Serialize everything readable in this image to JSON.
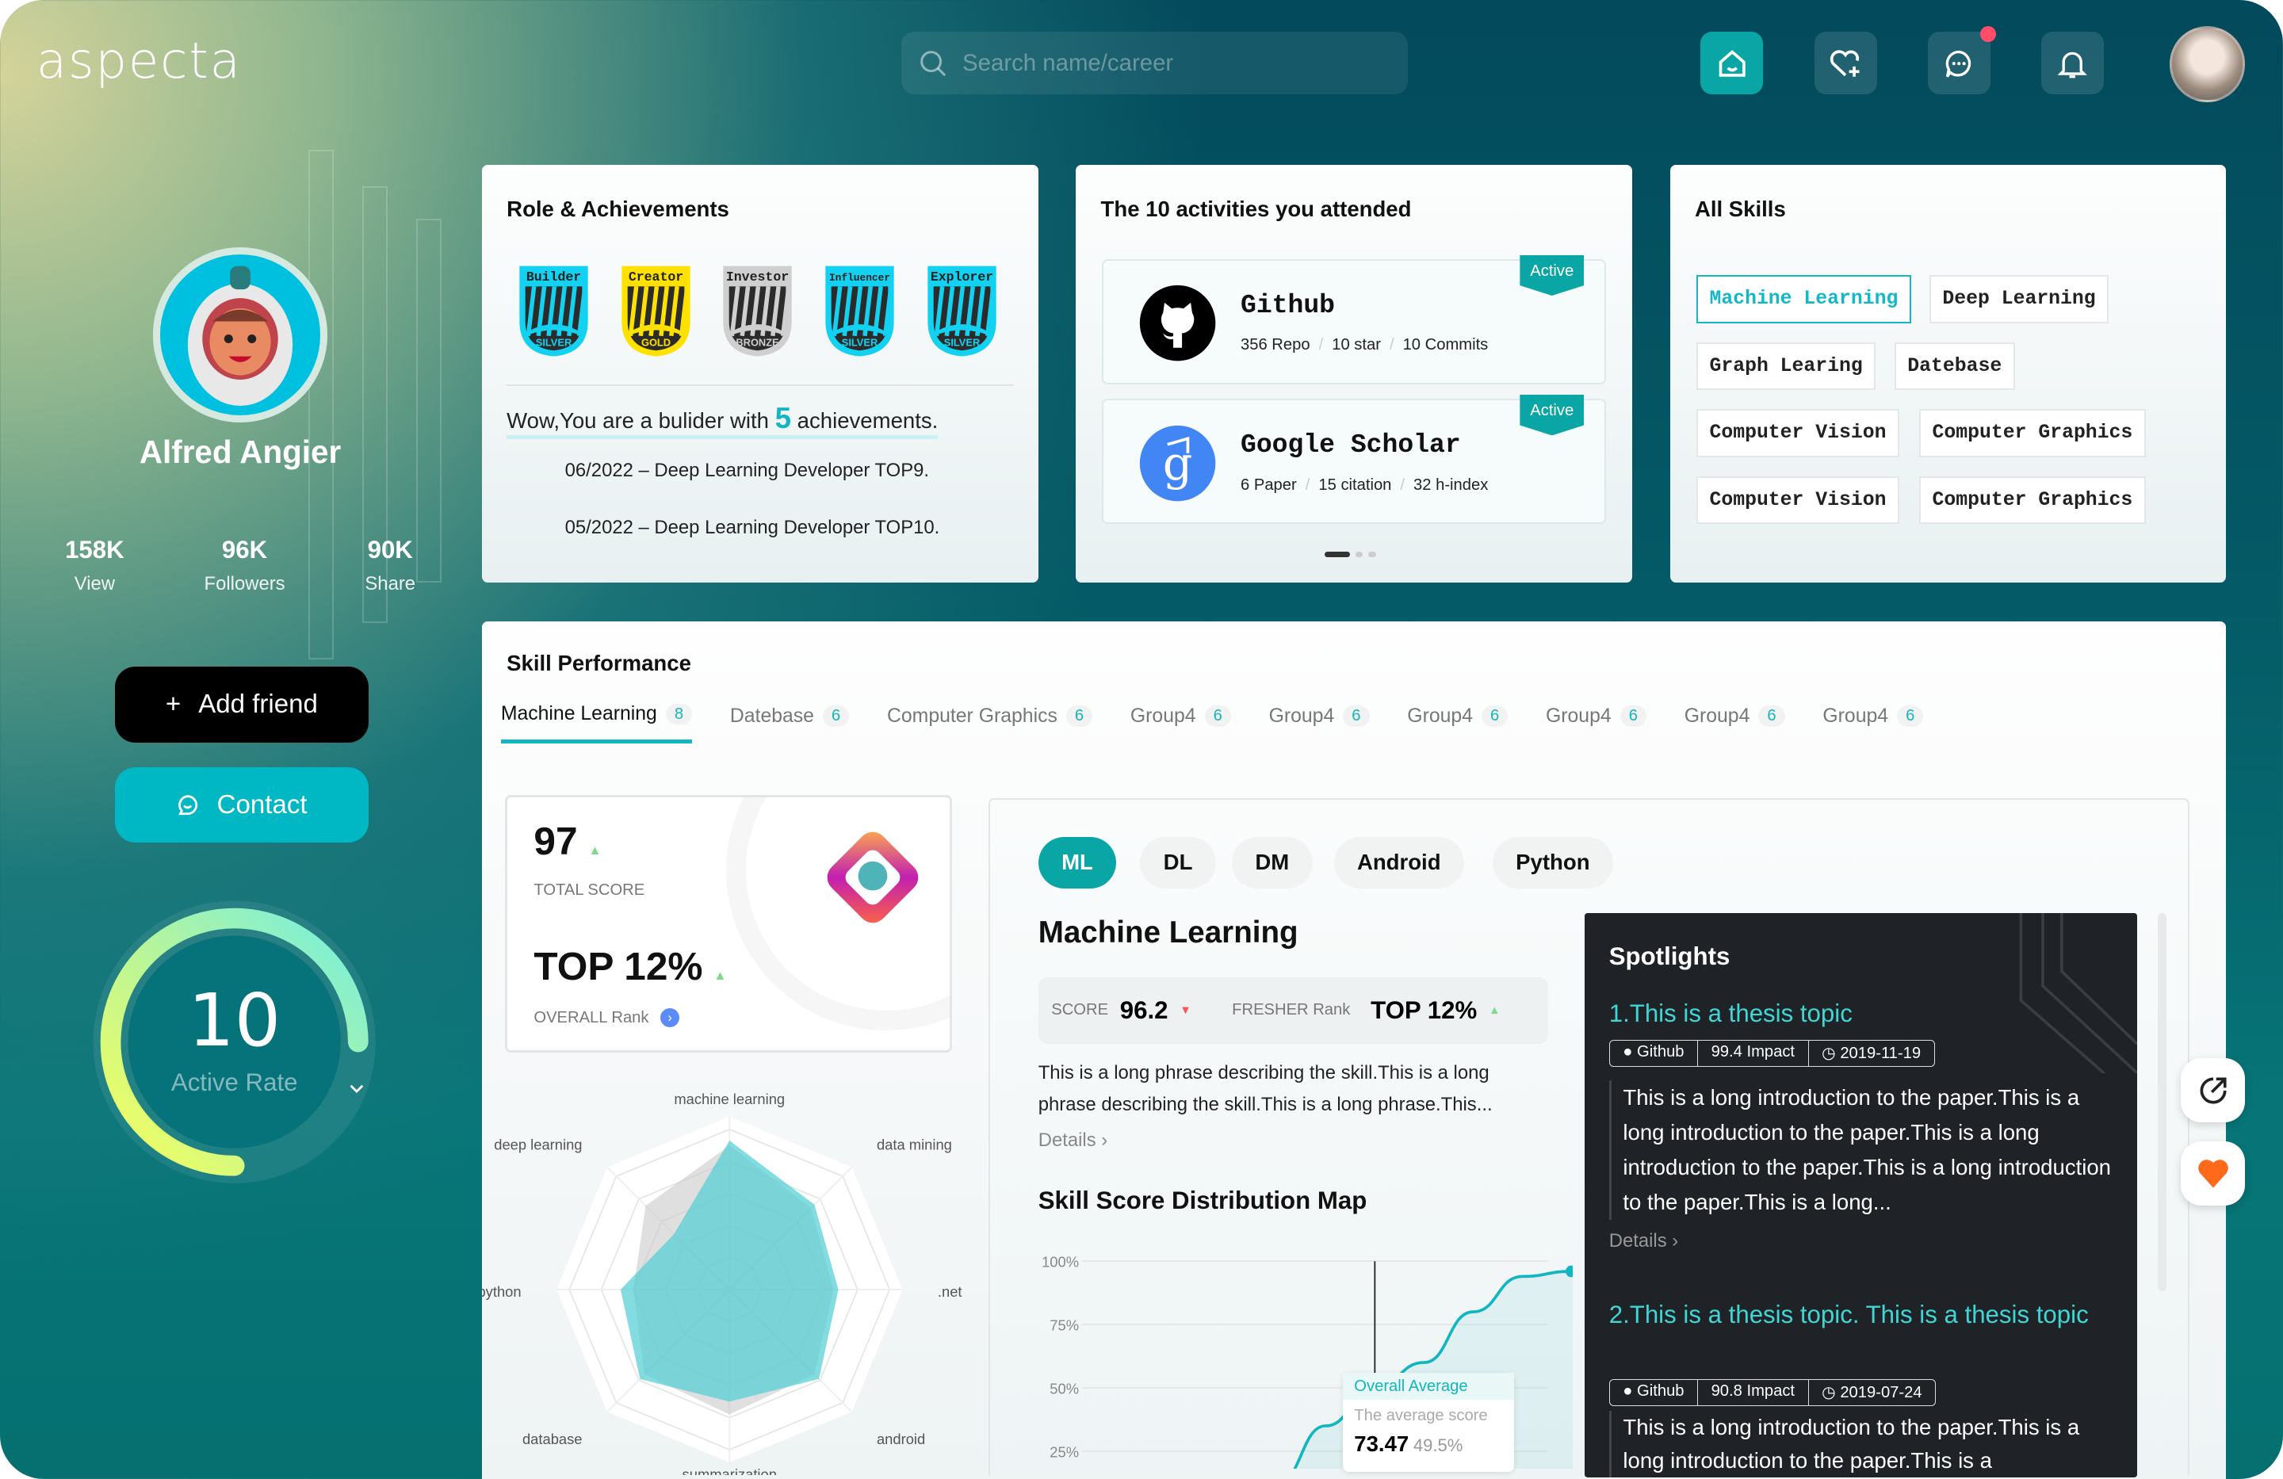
{
  "app": {
    "logo": "aspecta",
    "search_placeholder": "Search name/career"
  },
  "nav": {
    "icons": [
      "home-icon",
      "heart-plus-icon",
      "chat-icon",
      "bell-icon"
    ],
    "chat_has_notification": true
  },
  "profile": {
    "name": "Alfred Angier",
    "stats": [
      {
        "value": "158K",
        "label": "View"
      },
      {
        "value": "96K",
        "label": "Followers"
      },
      {
        "value": "90K",
        "label": "Share"
      }
    ],
    "add_friend": "Add friend",
    "contact": "Contact",
    "active_rate": {
      "value": "10",
      "label": "Active Rate",
      "fill_fraction": 0.75
    }
  },
  "achievements": {
    "title": "Role & Achievements",
    "badges": [
      {
        "name": "Builder",
        "tier": "SILVER",
        "color": "#13d1f0"
      },
      {
        "name": "Creator",
        "tier": "GOLD",
        "color": "#ffe100"
      },
      {
        "name": "Investor",
        "tier": "BRONZE",
        "color": "#cfcfcf"
      },
      {
        "name": "Influencer",
        "tier": "SILVER",
        "color": "#13d1f0"
      },
      {
        "name": "Explorer",
        "tier": "SILVER",
        "color": "#13d1f0"
      }
    ],
    "summary_pre": "Wow,You are a bulider with",
    "summary_count": "5",
    "summary_post": "achievements.",
    "items": [
      "06/2022 – Deep Learning Developer TOP9.",
      "05/2022 – Deep Learning Developer TOP10."
    ]
  },
  "activities": {
    "title": "The 10 activities you attended",
    "items": [
      {
        "name": "Github",
        "badge": "Active",
        "stats": [
          "356 Repo",
          "10 star",
          "10 Commits"
        ]
      },
      {
        "name": "Google Scholar",
        "badge": "Active",
        "stats": [
          "6 Paper",
          "15 citation",
          "32 h-index"
        ]
      }
    ],
    "page": 1,
    "pages": 3
  },
  "skills": {
    "title": "All Skills",
    "items": [
      "Machine Learning",
      "Deep Learning",
      "Graph Learing",
      "Datebase",
      "Computer Vision",
      "Computer Graphics",
      "Computer Vision",
      "Computer Graphics"
    ],
    "selected": "Machine Learning"
  },
  "performance": {
    "title": "Skill Performance",
    "tabs": [
      {
        "label": "Machine Learning",
        "count": "8"
      },
      {
        "label": "Datebase",
        "count": "6"
      },
      {
        "label": "Computer Graphics",
        "count": "6"
      },
      {
        "label": "Group4",
        "count": "6"
      },
      {
        "label": "Group4",
        "count": "6"
      },
      {
        "label": "Group4",
        "count": "6"
      },
      {
        "label": "Group4",
        "count": "6"
      },
      {
        "label": "Group4",
        "count": "6"
      },
      {
        "label": "Group4",
        "count": "6"
      }
    ],
    "total_score": "97",
    "total_score_label": "TOTAL SCORE",
    "rank": "TOP 12%",
    "rank_label": "OVERALL Rank",
    "pills": [
      "ML",
      "DL",
      "DM",
      "Android",
      "Python"
    ],
    "active_pill": "ML",
    "skill_title": "Machine Learning",
    "score_label": "SCORE",
    "score": "96.2",
    "fresher_label": "FRESHER Rank",
    "fresher_rank": "TOP 12%",
    "description": "This is a long phrase describing the skill.This is a long phrase describing the skill.This is a long phrase.This...",
    "details": "Details",
    "dist_title": "Skill Score Distribution Map"
  },
  "spotlights": {
    "title": "Spotlights",
    "items": [
      {
        "title": "1.This is a thesis topic",
        "source": "Github",
        "impact": "99.4 Impact",
        "date": "2019-11-19",
        "intro": "This is a long introduction to the paper.This is a long introduction to the paper.This is a long introduction to the paper.This is a long introduction to the paper.This is a long...",
        "details": "Details"
      },
      {
        "title": "2.This is a thesis topic. This is a thesis topic",
        "source": "Github",
        "impact": "90.8 Impact",
        "date": "2019-07-24",
        "intro": "This is a long introduction to the paper.This is a long introduction to the paper.This is a"
      }
    ]
  },
  "chart_data": [
    {
      "type": "radar",
      "axes": [
        "machine learning",
        "data mining",
        ".net",
        "android",
        "summarization",
        "database",
        "python",
        "deep learning"
      ],
      "series": [
        {
          "values": [
            90,
            72,
            65,
            75,
            78,
            75,
            60,
            74
          ],
          "color": "#c9c9c9"
        },
        {
          "values": [
            93,
            75,
            68,
            79,
            70,
            79,
            68,
            49
          ],
          "color": "#4fcfd3"
        }
      ],
      "range": [
        0,
        100
      ],
      "rings": 5
    },
    {
      "type": "line",
      "yticks": [
        "100%",
        "75%",
        "50%",
        "25%"
      ],
      "ylim": [
        0,
        100
      ],
      "y": [
        0,
        12,
        35,
        50,
        60,
        80,
        94,
        96,
        96.5
      ],
      "marker_points": [
        7,
        8
      ],
      "tooltip": {
        "title": "Overall Average",
        "label": "The average score",
        "value": "73.47",
        "percent": "49.5%",
        "at_index": 3
      },
      "color": "#12b5c0"
    }
  ]
}
